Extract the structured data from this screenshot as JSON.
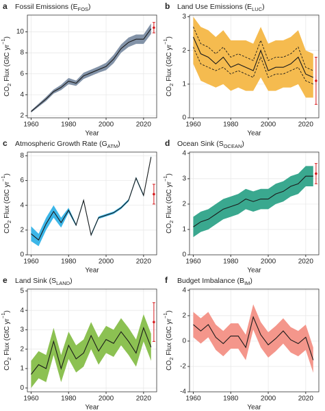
{
  "chart_data": [
    {
      "type": "line",
      "panel": "a",
      "title": [
        "Fossil Emissions (E",
        "FOS",
        ")"
      ],
      "ylabel": [
        "CO",
        "2",
        " Flux (GtC yr",
        "−1",
        ")"
      ],
      "xlabel": "Year",
      "band_color": "#8393a8",
      "line_color": "#1a1a1a",
      "estimate_color": "#d7191c",
      "x": [
        1960,
        1964,
        1968,
        1972,
        1976,
        1980,
        1984,
        1988,
        1992,
        1996,
        2000,
        2004,
        2008,
        2012,
        2016,
        2020,
        2024
      ],
      "values": [
        2.4,
        3.0,
        3.6,
        4.3,
        4.7,
        5.3,
        5.1,
        5.8,
        6.1,
        6.4,
        6.7,
        7.4,
        8.4,
        9.0,
        9.3,
        9.3,
        10.3
      ],
      "lower": [
        2.3,
        2.85,
        3.4,
        4.1,
        4.45,
        5.0,
        4.85,
        5.5,
        5.8,
        6.1,
        6.35,
        7.0,
        8.0,
        8.55,
        8.85,
        8.85,
        9.8
      ],
      "upper": [
        2.5,
        3.15,
        3.8,
        4.5,
        4.95,
        5.6,
        5.35,
        6.1,
        6.4,
        6.7,
        7.05,
        7.8,
        8.8,
        9.45,
        9.75,
        9.75,
        10.8
      ],
      "estimate": {
        "x": 2025.5,
        "value": 10.4,
        "error": 0.5
      },
      "xlim": [
        1958,
        2027
      ],
      "xticks": [
        1960,
        1980,
        2000,
        2020
      ],
      "ylim": [
        1.8,
        11.6
      ],
      "yticks": [
        2,
        4,
        6,
        8,
        10
      ],
      "grid": true
    },
    {
      "type": "line",
      "panel": "b",
      "title": [
        "Land Use Emissions (E",
        "LUC",
        ")"
      ],
      "ylabel": [
        "CO",
        "2",
        " Flux (GtC yr",
        "−1",
        ")"
      ],
      "xlabel": "Year",
      "band_color": "#f5bb4f",
      "line_color": "#1a1a1a",
      "estimate_color": "#d7191c",
      "x": [
        1960,
        1964,
        1968,
        1972,
        1976,
        1980,
        1984,
        1988,
        1992,
        1996,
        2000,
        2004,
        2008,
        2012,
        2016,
        2020,
        2024
      ],
      "values": [
        2.4,
        1.9,
        1.8,
        1.6,
        1.8,
        1.5,
        1.6,
        1.5,
        1.4,
        2.0,
        1.4,
        1.5,
        1.5,
        1.6,
        1.8,
        1.3,
        1.2
      ],
      "lower": [
        1.6,
        1.1,
        1.0,
        0.9,
        1.0,
        0.8,
        0.9,
        0.8,
        0.8,
        1.2,
        0.8,
        0.8,
        0.9,
        0.9,
        1.0,
        0.6,
        0.6
      ],
      "upper": [
        3.0,
        2.7,
        2.6,
        2.4,
        2.6,
        2.3,
        2.3,
        2.3,
        2.2,
        2.7,
        2.2,
        2.3,
        2.3,
        2.4,
        2.6,
        2.0,
        1.9
      ],
      "dashed": [
        [
          2.7,
          2.2,
          2.1,
          1.9,
          2.1,
          1.8,
          1.9,
          1.8,
          1.7,
          2.3,
          1.7,
          1.8,
          1.8,
          1.9,
          2.1,
          1.5,
          1.4
        ],
        [
          2.1,
          1.6,
          1.5,
          1.4,
          1.5,
          1.3,
          1.4,
          1.3,
          1.2,
          1.8,
          1.2,
          1.3,
          1.3,
          1.4,
          1.5,
          1.1,
          1.0
        ]
      ],
      "estimate": {
        "x": 2025.5,
        "value": 1.1,
        "error": 0.7
      },
      "xlim": [
        1958,
        2027
      ],
      "xticks": [
        1960,
        1980,
        2000,
        2020
      ],
      "ylim": [
        0,
        3.05
      ],
      "yticks": [
        0,
        1,
        2,
        3
      ],
      "grid": true
    },
    {
      "type": "line",
      "panel": "c",
      "title": [
        "Atmospheric Growth Rate (G",
        "ATM",
        ")"
      ],
      "ylabel": [
        "CO",
        "2",
        " Flux (GtC yr",
        "−1",
        ")"
      ],
      "xlabel": "Year",
      "band_color": "#3cb6e8",
      "line_color": "#1a1a1a",
      "estimate_color": "#d7191c",
      "x": [
        1960,
        1964,
        1968,
        1972,
        1976,
        1980,
        1984,
        1988,
        1992,
        1996,
        2000,
        2004,
        2008,
        2012,
        2016,
        2020,
        2024
      ],
      "values": [
        1.7,
        1.2,
        2.5,
        3.5,
        2.6,
        3.6,
        2.4,
        4.4,
        1.6,
        3.0,
        3.2,
        3.4,
        3.8,
        4.4,
        6.2,
        4.8,
        7.9
      ],
      "lower": [
        1.1,
        0.7,
        2.0,
        3.0,
        2.2,
        3.4,
        2.3,
        4.3,
        1.5,
        2.9,
        3.1,
        3.3,
        3.7,
        4.3,
        6.1,
        4.7,
        7.8
      ],
      "upper": [
        2.3,
        1.7,
        3.0,
        4.0,
        3.0,
        3.8,
        2.5,
        4.5,
        1.7,
        3.1,
        3.3,
        3.5,
        3.9,
        4.5,
        6.3,
        4.9,
        8.0
      ],
      "estimate": {
        "x": 2025.5,
        "value": 4.9,
        "error": 0.8
      },
      "xlim": [
        1958,
        2027
      ],
      "xticks": [
        1960,
        1980,
        2000,
        2020
      ],
      "ylim": [
        0,
        8.3
      ],
      "yticks": [
        0,
        2,
        4,
        6,
        8
      ],
      "grid": true
    },
    {
      "type": "line",
      "panel": "d",
      "title": [
        "Ocean Sink (S",
        "OCEAN",
        ")"
      ],
      "ylabel": [
        "CO",
        "2",
        " Flux (GtC yr",
        "−1",
        ")"
      ],
      "xlabel": "Year",
      "band_color": "#3aa88f",
      "line_color": "#1a1a1a",
      "estimate_color": "#d7191c",
      "x": [
        1960,
        1964,
        1968,
        1972,
        1976,
        1980,
        1984,
        1988,
        1992,
        1996,
        2000,
        2004,
        2008,
        2012,
        2016,
        2020,
        2024
      ],
      "values": [
        1.1,
        1.3,
        1.4,
        1.6,
        1.8,
        1.9,
        2.0,
        2.2,
        2.1,
        2.2,
        2.2,
        2.4,
        2.5,
        2.7,
        2.8,
        3.1,
        3.1
      ],
      "lower": [
        0.7,
        0.9,
        1.0,
        1.2,
        1.4,
        1.5,
        1.6,
        1.8,
        1.7,
        1.8,
        1.8,
        2.0,
        2.1,
        2.3,
        2.4,
        2.7,
        2.7
      ],
      "upper": [
        1.5,
        1.7,
        1.8,
        2.0,
        2.2,
        2.3,
        2.4,
        2.6,
        2.5,
        2.6,
        2.6,
        2.8,
        2.9,
        3.1,
        3.2,
        3.5,
        3.5
      ],
      "estimate": {
        "x": 2025.5,
        "value": 3.2,
        "error": 0.4
      },
      "xlim": [
        1958,
        2027
      ],
      "xticks": [
        1960,
        1980,
        2000,
        2020
      ],
      "ylim": [
        0,
        4.05
      ],
      "yticks": [
        0,
        1,
        2,
        3,
        4
      ],
      "grid": true
    },
    {
      "type": "line",
      "panel": "e",
      "title": [
        "Land Sink (S",
        "LAND",
        ")"
      ],
      "ylabel": [
        "CO",
        "2",
        " Flux (GtC yr",
        "−1",
        ")"
      ],
      "xlabel": "Year",
      "band_color": "#8cc152",
      "line_color": "#1a1a1a",
      "estimate_color": "#d7191c",
      "x": [
        1960,
        1964,
        1968,
        1972,
        1976,
        1980,
        1984,
        1988,
        1992,
        1996,
        2000,
        2004,
        2008,
        2012,
        2016,
        2020,
        2024
      ],
      "values": [
        0.7,
        1.2,
        1.0,
        2.4,
        1.0,
        2.2,
        1.5,
        1.8,
        2.7,
        1.9,
        2.5,
        2.3,
        2.9,
        2.4,
        1.8,
        3.1,
        2.1
      ],
      "lower": [
        0.0,
        0.5,
        0.3,
        1.7,
        0.3,
        1.5,
        0.8,
        1.1,
        2.0,
        1.2,
        1.8,
        1.6,
        2.2,
        1.7,
        1.1,
        2.4,
        1.4
      ],
      "upper": [
        1.4,
        1.9,
        1.7,
        3.1,
        1.7,
        2.9,
        2.2,
        2.5,
        3.4,
        2.6,
        3.2,
        3.0,
        3.6,
        3.1,
        2.5,
        3.8,
        2.8
      ],
      "estimate": {
        "x": 2025.5,
        "value": 3.4,
        "error": 1.0
      },
      "xlim": [
        1958,
        2027
      ],
      "xticks": [
        1960,
        1980,
        2000,
        2020
      ],
      "ylim": [
        -0.2,
        5.1
      ],
      "yticks": [
        0,
        1,
        2,
        3,
        4,
        5
      ],
      "grid": true
    },
    {
      "type": "line",
      "panel": "f",
      "title": [
        "Budget Imbalance (B",
        "IM",
        ")"
      ],
      "ylabel": [
        "CO",
        "2",
        " Flux (GtC yr",
        "−1",
        ")"
      ],
      "xlabel": "Year",
      "band_color": "#f4968b",
      "line_color": "#1a1a1a",
      "x": [
        1960,
        1964,
        1968,
        1972,
        1976,
        1980,
        1984,
        1988,
        1992,
        1996,
        2000,
        2004,
        2008,
        2012,
        2016,
        2020,
        2024
      ],
      "values": [
        1.3,
        0.8,
        1.3,
        0.3,
        -0.2,
        0.4,
        0.4,
        -0.5,
        1.9,
        0.5,
        -0.3,
        0.2,
        0.8,
        0.1,
        -0.2,
        0.3,
        -1.5
      ],
      "lower": [
        0.3,
        -0.2,
        0.3,
        -0.7,
        -1.2,
        -0.6,
        -0.6,
        -1.5,
        0.9,
        -0.5,
        -1.3,
        -0.8,
        -0.2,
        -0.9,
        -1.2,
        -0.7,
        -2.5
      ],
      "upper": [
        2.3,
        1.8,
        2.3,
        1.3,
        0.8,
        1.4,
        1.4,
        0.5,
        2.9,
        1.5,
        0.7,
        1.2,
        1.8,
        1.1,
        0.8,
        1.3,
        -0.5
      ],
      "xlim": [
        1958,
        2027
      ],
      "xticks": [
        1960,
        1980,
        2000,
        2020
      ],
      "ylim": [
        -4,
        4.1
      ],
      "yticks": [
        -4,
        -2,
        0,
        2,
        4
      ],
      "grid": true
    }
  ]
}
